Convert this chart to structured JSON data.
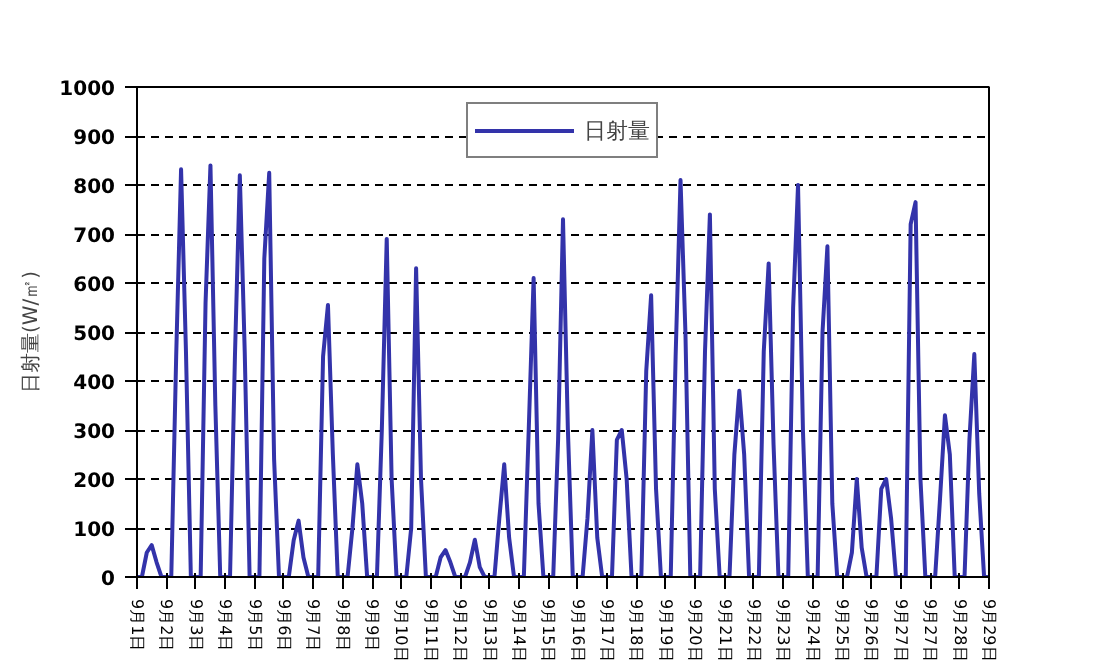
{
  "chart_data": {
    "type": "line",
    "ylabel": "日射量(W/㎡)",
    "legend": "top",
    "grid": "y",
    "marker": "none",
    "line_style": "solid",
    "ylim": [
      0,
      1000
    ],
    "yticks": [
      0,
      100,
      200,
      300,
      400,
      500,
      600,
      700,
      800,
      900,
      1000
    ],
    "categories": [
      "9月1日",
      null,
      null,
      null,
      null,
      null,
      "9月2日",
      null,
      null,
      null,
      null,
      null,
      "9月3日",
      null,
      null,
      null,
      null,
      null,
      "9月4日",
      null,
      null,
      null,
      null,
      null,
      "9月5日",
      null,
      null,
      null,
      null,
      null,
      "9月6日",
      null,
      null,
      null,
      null,
      null,
      "9月7日",
      null,
      null,
      null,
      null,
      null,
      "9月8日",
      null,
      null,
      null,
      null,
      null,
      "9月9日",
      null,
      null,
      null,
      null,
      null,
      "9月10日",
      null,
      null,
      null,
      null,
      null,
      "9月11日",
      null,
      null,
      null,
      null,
      null,
      "9月12日",
      null,
      null,
      null,
      null,
      null,
      "9月13日",
      null,
      null,
      null,
      null,
      null,
      "9月14日",
      null,
      null,
      null,
      null,
      null,
      "9月15日",
      null,
      null,
      null,
      null,
      null,
      "9月16日",
      null,
      null,
      null,
      null,
      null,
      "9月17日",
      null,
      null,
      null,
      null,
      null,
      "9月18日",
      null,
      null,
      null,
      null,
      null,
      "9月19日",
      null,
      null,
      null,
      null,
      null,
      "9月20日",
      null,
      null,
      null,
      null,
      null,
      "9月21日",
      null,
      null,
      null,
      null,
      null,
      "9月22日",
      null,
      null,
      null,
      null,
      null,
      "9月23日",
      null,
      null,
      null,
      null,
      null,
      "9月24日",
      null,
      null,
      null,
      null,
      null,
      "9月25日",
      null,
      null,
      null,
      null,
      null,
      "9月26日",
      null,
      null,
      null,
      null,
      null,
      "9月27日",
      null,
      null,
      null,
      null,
      null,
      "9月27日",
      null,
      null,
      null,
      null,
      null,
      "9月28日",
      null,
      null,
      null,
      null,
      null,
      "9月29日"
    ],
    "series": [
      {
        "name": "日射量",
        "color": "#3333aa",
        "values": [
          0,
          0,
          50,
          65,
          30,
          0,
          0,
          0,
          450,
          832,
          460,
          0,
          0,
          0,
          560,
          840,
          350,
          0,
          0,
          0,
          450,
          820,
          460,
          0,
          0,
          0,
          650,
          825,
          240,
          0,
          0,
          0,
          75,
          115,
          40,
          0,
          0,
          0,
          450,
          555,
          250,
          0,
          0,
          0,
          100,
          230,
          150,
          0,
          0,
          0,
          300,
          690,
          200,
          0,
          0,
          0,
          100,
          630,
          200,
          0,
          0,
          0,
          40,
          55,
          30,
          0,
          0,
          0,
          30,
          76,
          20,
          0,
          0,
          0,
          120,
          230,
          80,
          0,
          0,
          0,
          300,
          610,
          150,
          0,
          0,
          0,
          280,
          730,
          300,
          0,
          0,
          0,
          120,
          300,
          80,
          0,
          0,
          0,
          280,
          300,
          200,
          0,
          0,
          0,
          420,
          575,
          180,
          0,
          0,
          0,
          450,
          810,
          500,
          0,
          0,
          0,
          460,
          740,
          180,
          0,
          0,
          0,
          250,
          380,
          250,
          0,
          0,
          0,
          460,
          640,
          270,
          0,
          0,
          0,
          550,
          800,
          300,
          0,
          0,
          0,
          500,
          675,
          150,
          0,
          0,
          0,
          50,
          200,
          60,
          0,
          0,
          0,
          180,
          200,
          120,
          0,
          0,
          0,
          720,
          765,
          200,
          0,
          0,
          0,
          160,
          330,
          250,
          0,
          0,
          0,
          280,
          455,
          170,
          0,
          0
        ]
      }
    ]
  }
}
